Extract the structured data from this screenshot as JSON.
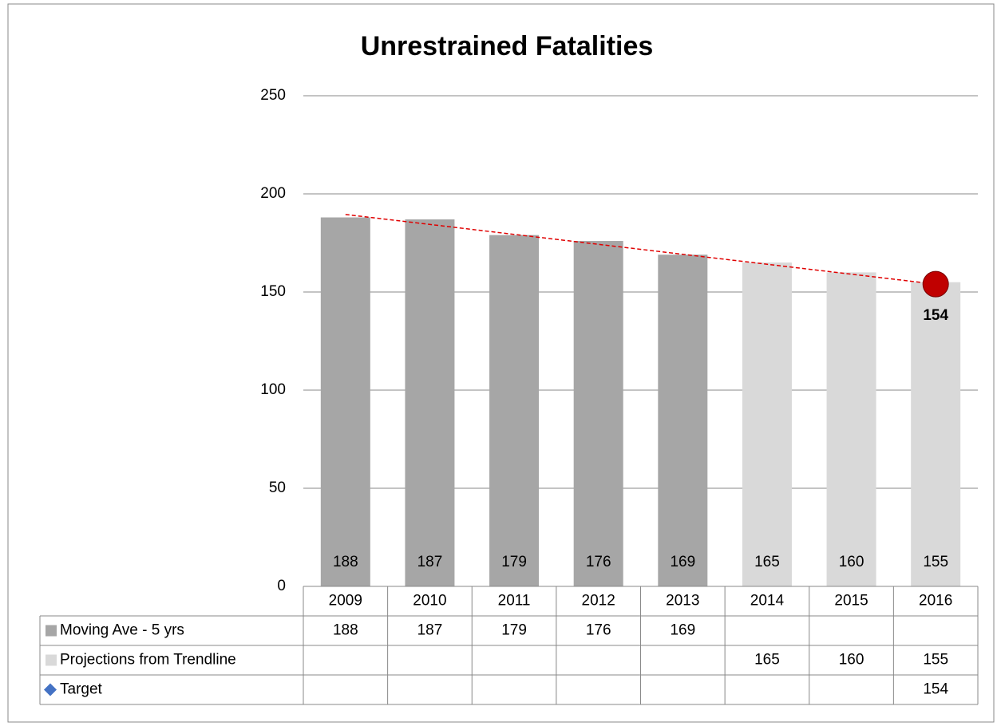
{
  "chart_data": {
    "type": "bar",
    "title": "Unrestrained Fatalities",
    "categories": [
      "2009",
      "2010",
      "2011",
      "2012",
      "2013",
      "2014",
      "2015",
      "2016"
    ],
    "series": [
      {
        "name": "Moving Ave - 5 yrs",
        "color": "#a6a6a6",
        "values": [
          188,
          187,
          179,
          176,
          169,
          null,
          null,
          null
        ]
      },
      {
        "name": "Projections from Trendline",
        "color": "#d9d9d9",
        "values": [
          null,
          null,
          null,
          null,
          null,
          165,
          160,
          155
        ]
      },
      {
        "name": "Target",
        "color": "#4472c4",
        "marker_color": "#c00000",
        "values": [
          null,
          null,
          null,
          null,
          null,
          null,
          null,
          154
        ]
      }
    ],
    "trendline": {
      "color": "#e00000",
      "start": 189.5,
      "end": 154
    },
    "ylim": [
      0,
      250
    ],
    "yticks": [
      0,
      50,
      100,
      150,
      200,
      250
    ],
    "grid": true
  }
}
